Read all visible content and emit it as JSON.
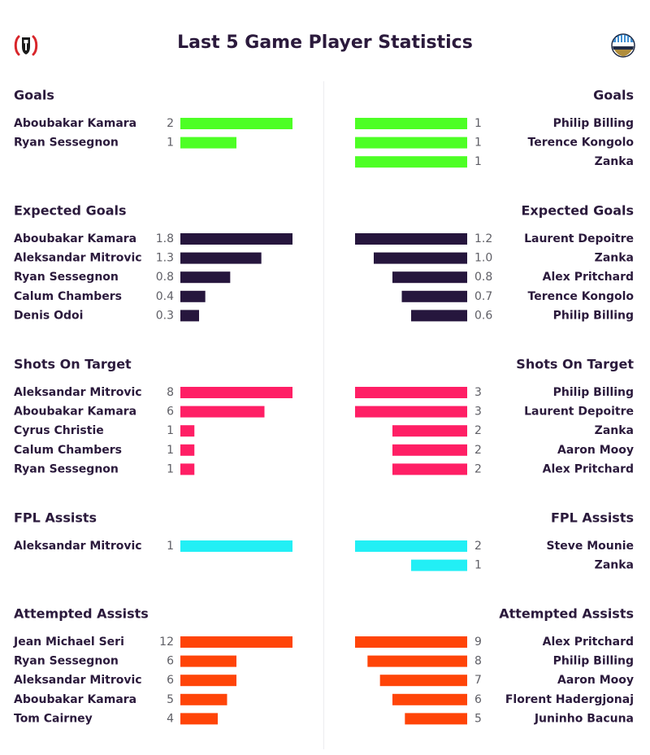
{
  "header": {
    "title": "Last 5 Game Player Statistics",
    "home_badge": "fulham-crest-icon",
    "away_badge": "huddersfield-crest-icon"
  },
  "chart_data": [
    {
      "type": "bar",
      "title": "Goals",
      "color": "#4dff25",
      "home": {
        "players": [
          "Aboubakar Kamara",
          "Ryan Sessegnon"
        ],
        "values": [
          2,
          1
        ]
      },
      "away": {
        "players": [
          "Philip Billing",
          "Terence Kongolo",
          "Zanka"
        ],
        "values": [
          1,
          1,
          1
        ]
      }
    },
    {
      "type": "bar",
      "title": "Expected Goals",
      "color": "#26163d",
      "home": {
        "players": [
          "Aboubakar Kamara",
          "Aleksandar Mitrovic",
          "Ryan Sessegnon",
          "Calum Chambers",
          "Denis Odoi"
        ],
        "values": [
          1.8,
          1.3,
          0.8,
          0.4,
          0.3
        ]
      },
      "away": {
        "players": [
          "Laurent Depoitre",
          "Zanka",
          "Alex Pritchard",
          "Terence Kongolo",
          "Philip Billing"
        ],
        "values": [
          1.2,
          1.0,
          0.8,
          0.7,
          0.6
        ]
      }
    },
    {
      "type": "bar",
      "title": "Shots On Target",
      "color": "#ff1f65",
      "home": {
        "players": [
          "Aleksandar Mitrovic",
          "Aboubakar Kamara",
          "Cyrus Christie",
          "Calum Chambers",
          "Ryan Sessegnon"
        ],
        "values": [
          8,
          6,
          1,
          1,
          1
        ]
      },
      "away": {
        "players": [
          "Philip Billing",
          "Laurent Depoitre",
          "Zanka",
          "Aaron Mooy",
          "Alex Pritchard"
        ],
        "values": [
          3,
          3,
          2,
          2,
          2
        ]
      }
    },
    {
      "type": "bar",
      "title": "FPL Assists",
      "color": "#22eff5",
      "home": {
        "players": [
          "Aleksandar Mitrovic"
        ],
        "values": [
          1
        ]
      },
      "away": {
        "players": [
          "Steve Mounie",
          "Zanka"
        ],
        "values": [
          2,
          1
        ]
      }
    },
    {
      "type": "bar",
      "title": "Attempted Assists",
      "color": "#ff4408",
      "home": {
        "players": [
          "Jean Michael Seri",
          "Ryan Sessegnon",
          "Aleksandar Mitrovic",
          "Aboubakar Kamara",
          "Tom Cairney"
        ],
        "values": [
          12,
          6,
          6,
          5,
          4
        ]
      },
      "away": {
        "players": [
          "Alex Pritchard",
          "Philip Billing",
          "Aaron Mooy",
          "Florent Hadergjonaj",
          "Juninho Bacuna"
        ],
        "values": [
          9,
          8,
          7,
          6,
          5
        ]
      }
    }
  ]
}
